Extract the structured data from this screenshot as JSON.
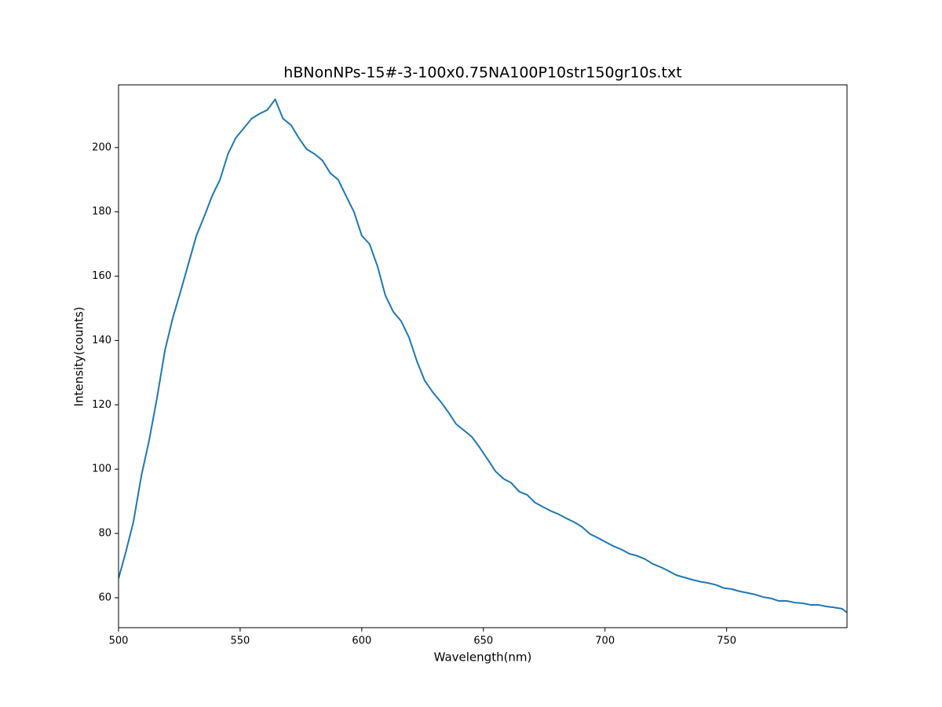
{
  "chart_data": {
    "type": "line",
    "title": "hBNonNPs-15#-3-100x0.75NA100P10str150gr10s.txt",
    "x_label": "Wavelength(nm)",
    "y_label": "Intensity(counts)",
    "xlim": [
      500,
      799.5
    ],
    "ylim": [
      50.7,
      219.5
    ],
    "xticks": [
      500,
      550,
      600,
      650,
      700,
      750
    ],
    "yticks": [
      60,
      80,
      100,
      120,
      140,
      160,
      180,
      200
    ],
    "grid": false,
    "series": [
      {
        "color": "#1f77b4",
        "x": [
          500,
          502.9,
          506.1,
          509.4,
          512.6,
          515.9,
          519.1,
          522.3,
          525.6,
          528.8,
          532.0,
          535.3,
          538.5,
          541.7,
          545.0,
          548.2,
          551.5,
          554.7,
          557.9,
          561.2,
          564.4,
          567.6,
          570.9,
          574.1,
          577.3,
          580.6,
          583.8,
          587.1,
          590.3,
          593.5,
          596.8,
          600.0,
          603.2,
          606.5,
          609.7,
          612.9,
          616.2,
          619.4,
          622.7,
          625.9,
          629.1,
          632.4,
          635.6,
          638.8,
          642.1,
          645.3,
          648.5,
          651.8,
          655.0,
          658.3,
          661.5,
          664.7,
          668.0,
          671.2,
          674.4,
          677.7,
          680.9,
          684.1,
          687.4,
          690.6,
          693.9,
          697.1,
          700.3,
          703.6,
          706.8,
          710.0,
          713.3,
          716.5,
          719.7,
          723.0,
          726.2,
          729.4,
          732.7,
          735.9,
          739.2,
          742.4,
          745.6,
          748.9,
          752.1,
          755.3,
          758.6,
          761.8,
          765.0,
          768.3,
          771.5,
          774.8,
          778.0,
          781.2,
          784.5,
          787.7,
          790.9,
          794.2,
          797.4,
          799.5
        ],
        "values": [
          66,
          74,
          83.5,
          98,
          109,
          122.5,
          137,
          147,
          155.5,
          164,
          172.6,
          178.7,
          185,
          190,
          198,
          203,
          206,
          209,
          210.5,
          211.7,
          215,
          209,
          207,
          203,
          199.5,
          198,
          196,
          192,
          190,
          185,
          180,
          172.6,
          170,
          163,
          154,
          149,
          146,
          141,
          133.5,
          127.5,
          124,
          121,
          117.7,
          114,
          112,
          110,
          106.7,
          103,
          99.3,
          97,
          95.7,
          93,
          92,
          89.6,
          88.3,
          87,
          86,
          84.7,
          83.5,
          82,
          79.8,
          78.6,
          77.3,
          76,
          75,
          73.7,
          73,
          72,
          70.5,
          69.5,
          68.3,
          67,
          66.3,
          65.6,
          65,
          64.6,
          64,
          63,
          62.7,
          62,
          61.5,
          61,
          60.2,
          59.8,
          59,
          59,
          58.5,
          58.3,
          57.8,
          57.8,
          57.3,
          57,
          56.6,
          55.4
        ]
      }
    ]
  }
}
